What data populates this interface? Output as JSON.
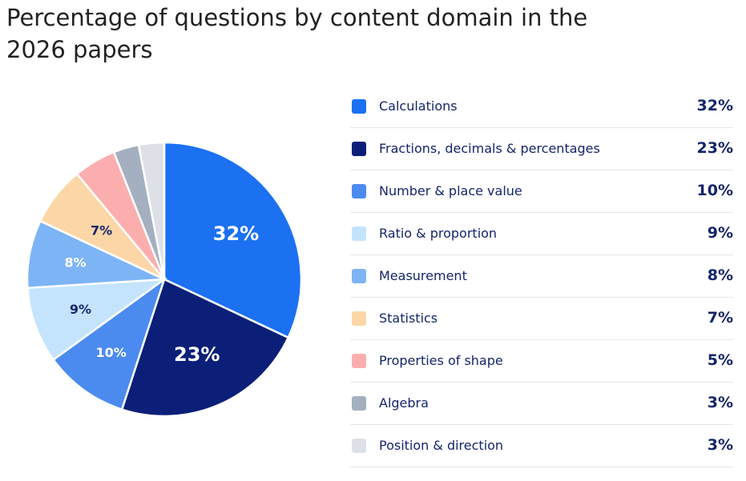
{
  "title": "Percentage of questions by content domain in the 2026 papers",
  "chart_data": {
    "type": "pie",
    "title": "Percentage of questions by content domain in the 2026 papers",
    "slices": [
      {
        "label": "Calculations",
        "value": 32,
        "value_label": "32%",
        "color": "#1b71f2",
        "text_color": "#ffffff"
      },
      {
        "label": "Fractions, decimals & percentages",
        "value": 23,
        "value_label": "23%",
        "color": "#0b1f78",
        "text_color": "#ffffff"
      },
      {
        "label": "Number & place value",
        "value": 10,
        "value_label": "10%",
        "color": "#4b8bf0",
        "text_color": "#ffffff"
      },
      {
        "label": "Ratio & proportion",
        "value": 9,
        "value_label": "9%",
        "color": "#c4e4fd",
        "text_color": "#14256b"
      },
      {
        "label": "Measurement",
        "value": 8,
        "value_label": "8%",
        "color": "#7db4f6",
        "text_color": "#ffffff"
      },
      {
        "label": "Statistics",
        "value": 7,
        "value_label": "7%",
        "color": "#fcd6a6",
        "text_color": "#14256b"
      },
      {
        "label": "Properties of shape",
        "value": 5,
        "value_label": "5%",
        "color": "#fcaeae",
        "text_color": "#14256b"
      },
      {
        "label": "Algebra",
        "value": 3,
        "value_label": "3%",
        "color": "#a4b0c0",
        "text_color": "#14256b"
      },
      {
        "label": "Position & direction",
        "value": 3,
        "value_label": "3%",
        "color": "#dde1e7",
        "text_color": "#14256b"
      }
    ],
    "legend_placement": "right"
  }
}
